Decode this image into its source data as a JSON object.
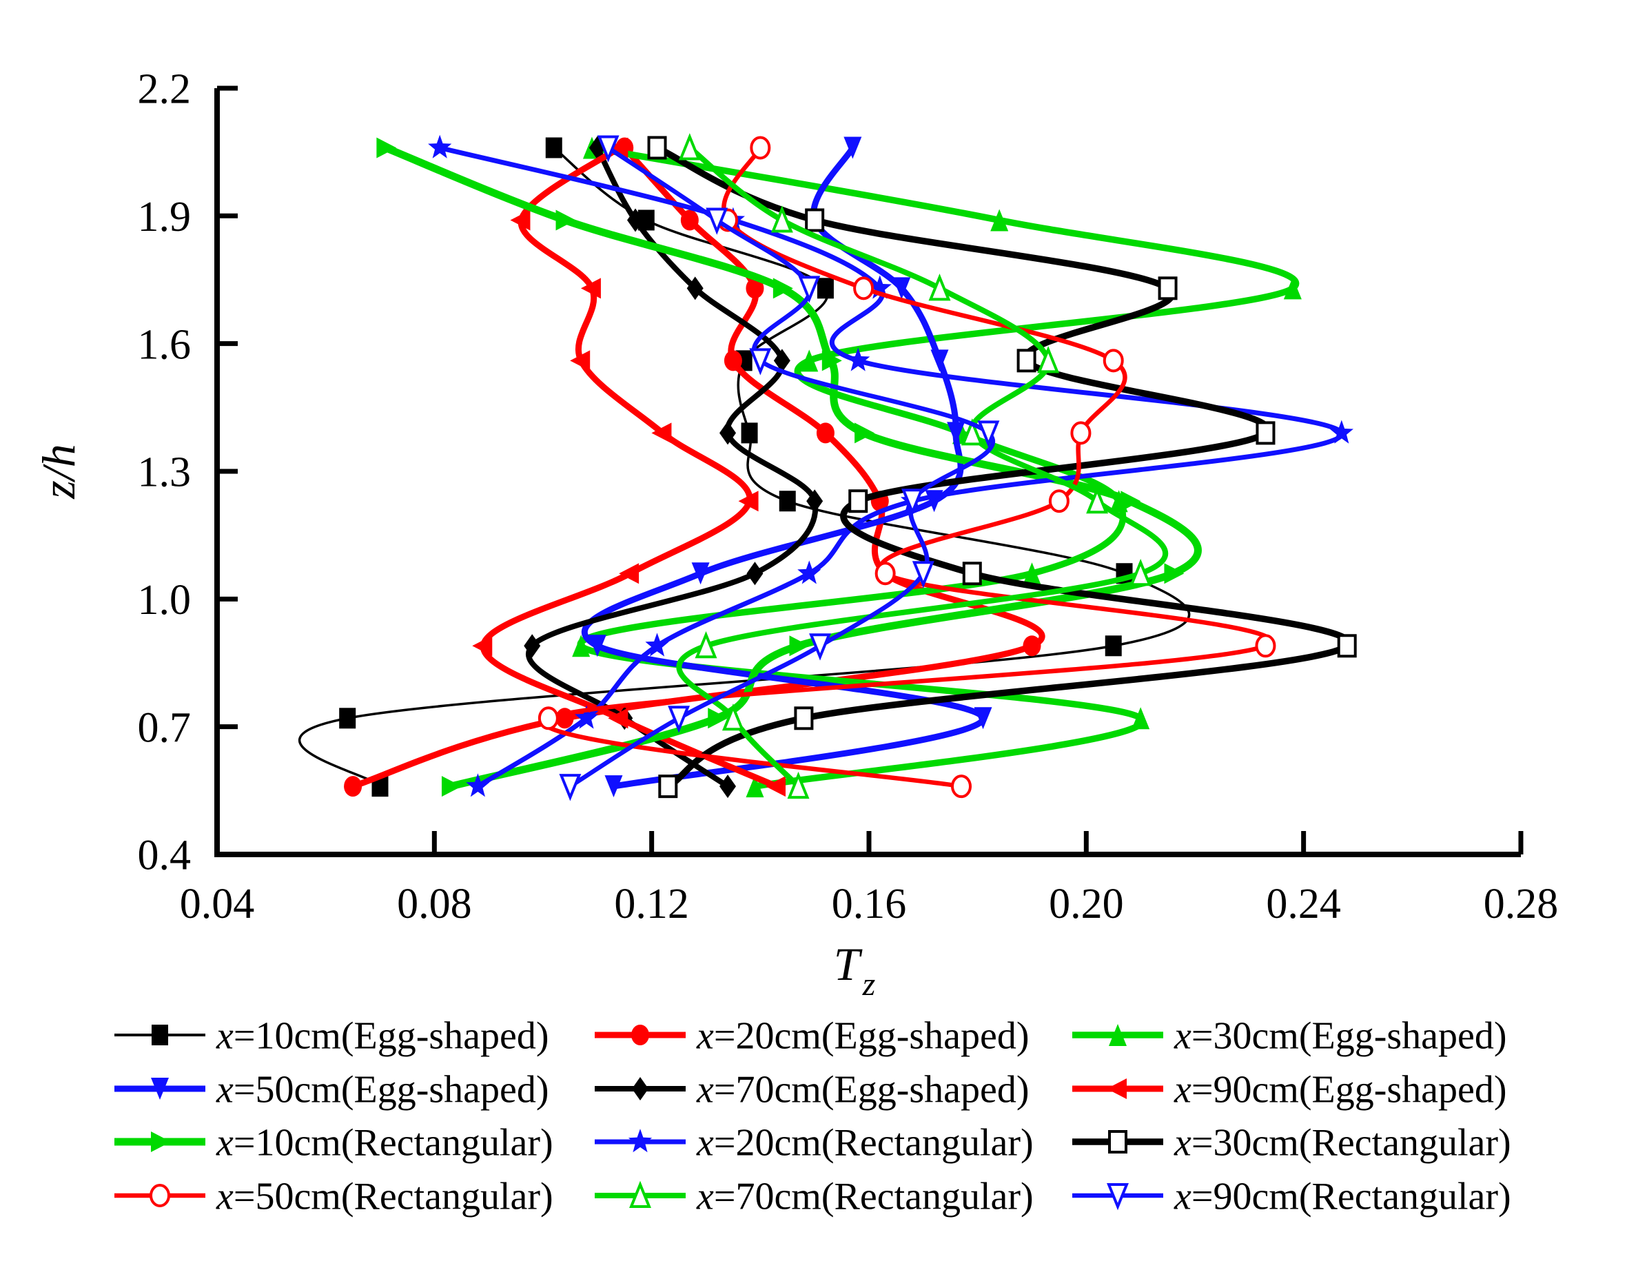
{
  "chart_data": {
    "type": "line",
    "title": "",
    "xlabel": {
      "base": "T",
      "sub": "z"
    },
    "ylabel": "z/h",
    "xlim": [
      0.04,
      0.28
    ],
    "ylim": [
      0.4,
      2.2
    ],
    "grid": false,
    "legend_position": "bottom",
    "x_ticks": [
      "0.04",
      "0.08",
      "0.12",
      "0.16",
      "0.20",
      "0.24",
      "0.28"
    ],
    "x_tick_values": [
      0.04,
      0.08,
      0.12,
      0.16,
      0.2,
      0.24,
      0.28
    ],
    "y_ticks": [
      "0.4",
      "0.7",
      "1.0",
      "1.3",
      "1.6",
      "1.9",
      "2.2"
    ],
    "y_tick_values": [
      0.4,
      0.7,
      1.0,
      1.3,
      1.6,
      1.9,
      2.2
    ],
    "z_levels": [
      0.56,
      0.72,
      0.89,
      1.06,
      1.23,
      1.39,
      1.56,
      1.73,
      1.89,
      2.06
    ],
    "series": [
      {
        "name": "x=10cm(Egg-shaped)",
        "color": "#000000",
        "marker": "square",
        "line_width": 3.5,
        "values": [
          0.07,
          0.064,
          0.205,
          0.207,
          0.145,
          0.138,
          0.137,
          0.152,
          0.119,
          0.102
        ]
      },
      {
        "name": "x=20cm(Egg-shaped)",
        "color": "#FF0000",
        "marker": "circle",
        "line_width": 9,
        "values": [
          0.065,
          0.104,
          0.19,
          0.163,
          0.162,
          0.152,
          0.135,
          0.139,
          0.127,
          0.115
        ]
      },
      {
        "name": "x=30cm(Egg-shaped)",
        "color": "#00D900",
        "marker": "triangle-up",
        "line_width": 9.5,
        "values": [
          0.139,
          0.21,
          0.107,
          0.19,
          0.206,
          0.177,
          0.149,
          0.238,
          0.184,
          0.109
        ]
      },
      {
        "name": "x=50cm(Egg-shaped)",
        "color": "#1010FF",
        "marker": "triangle-down",
        "line_width": 9,
        "values": [
          0.113,
          0.181,
          0.11,
          0.129,
          0.172,
          0.176,
          0.173,
          0.166,
          0.15,
          0.157
        ]
      },
      {
        "name": "x=70cm(Egg-shaped)",
        "color": "#000000",
        "marker": "diamond",
        "line_width": 8,
        "values": [
          0.134,
          0.115,
          0.098,
          0.139,
          0.15,
          0.134,
          0.144,
          0.128,
          0.117,
          0.11
        ]
      },
      {
        "name": "x=90cm(Egg-shaped)",
        "color": "#FF0000",
        "marker": "triangle-left",
        "line_width": 9,
        "values": [
          0.143,
          0.114,
          0.089,
          0.116,
          0.138,
          0.122,
          0.107,
          0.109,
          0.096,
          0.114
        ]
      },
      {
        "name": "x=10cm(Rectangular)",
        "color": "#00D900",
        "marker": "triangle-right",
        "line_width": 11,
        "values": [
          0.083,
          0.132,
          0.147,
          0.216,
          0.208,
          0.159,
          0.153,
          0.144,
          0.104,
          0.071
        ]
      },
      {
        "name": "x=20cm(Rectangular)",
        "color": "#1010FF",
        "marker": "star",
        "line_width": 7,
        "values": [
          0.088,
          0.108,
          0.121,
          0.149,
          0.168,
          0.247,
          0.158,
          0.162,
          0.135,
          0.081
        ]
      },
      {
        "name": "x=30cm(Rectangular)",
        "color": "#000000",
        "marker": "square-open",
        "line_width": 9.5,
        "values": [
          0.123,
          0.148,
          0.248,
          0.179,
          0.158,
          0.233,
          0.189,
          0.215,
          0.15,
          0.121
        ]
      },
      {
        "name": "x=50cm(Rectangular)",
        "color": "#FF0000",
        "marker": "circle-open",
        "line_width": 6.5,
        "values": [
          0.177,
          0.101,
          0.233,
          0.163,
          0.195,
          0.199,
          0.205,
          0.159,
          0.134,
          0.14
        ]
      },
      {
        "name": "x=70cm(Rectangular)",
        "color": "#00D900",
        "marker": "triangle-up-open",
        "line_width": 8,
        "values": [
          0.147,
          0.135,
          0.13,
          0.21,
          0.202,
          0.179,
          0.193,
          0.173,
          0.144,
          0.127
        ]
      },
      {
        "name": "x=90cm(Rectangular)",
        "color": "#1010FF",
        "marker": "triangle-down-open",
        "line_width": 6.5,
        "values": [
          0.105,
          0.125,
          0.151,
          0.17,
          0.168,
          0.182,
          0.14,
          0.149,
          0.132,
          0.112
        ]
      }
    ]
  }
}
